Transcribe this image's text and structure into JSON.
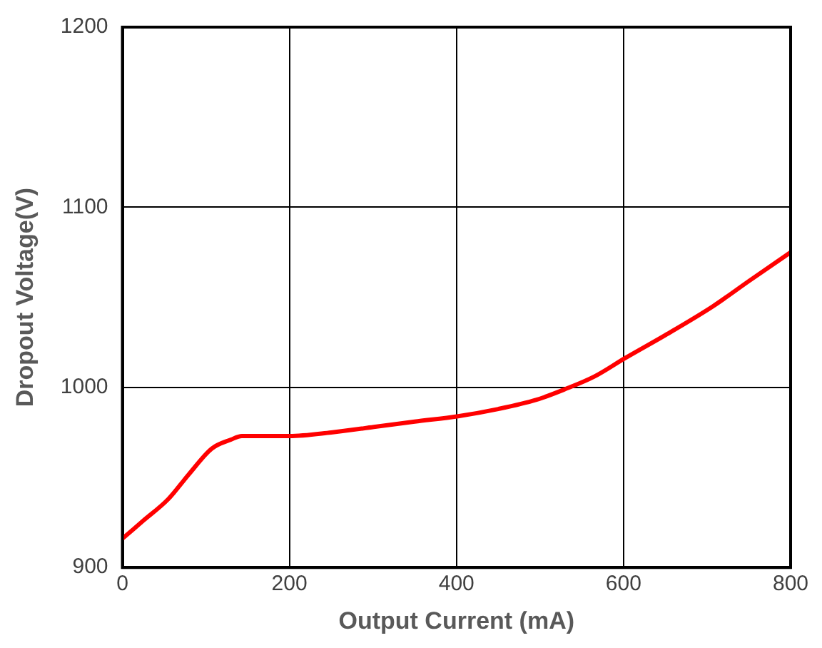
{
  "chart_data": {
    "type": "line",
    "xlabel": "Output Current (mA)",
    "ylabel": "Dropout Voltage(V)",
    "x": [
      0,
      25,
      55,
      80,
      107,
      130,
      143,
      170,
      200,
      250,
      301,
      350,
      402,
      450,
      495,
      530,
      565,
      601,
      650,
      707,
      750,
      800
    ],
    "series": [
      {
        "color": "#ff0000",
        "values": [
          916,
          926,
          938,
          952,
          966,
          971,
          973,
          973,
          973,
          975,
          978,
          981,
          984,
          988,
          993,
          999,
          1006,
          1016,
          1029,
          1045,
          1059,
          1075
        ]
      }
    ],
    "xlim": [
      0,
      800
    ],
    "xticks": [
      0,
      200,
      400,
      600,
      800
    ],
    "ylim": [
      900,
      1200
    ],
    "yticks": [
      900,
      1000,
      1100,
      1200
    ],
    "grid": true,
    "legend": false,
    "marker": "none",
    "line_style": "solid"
  }
}
